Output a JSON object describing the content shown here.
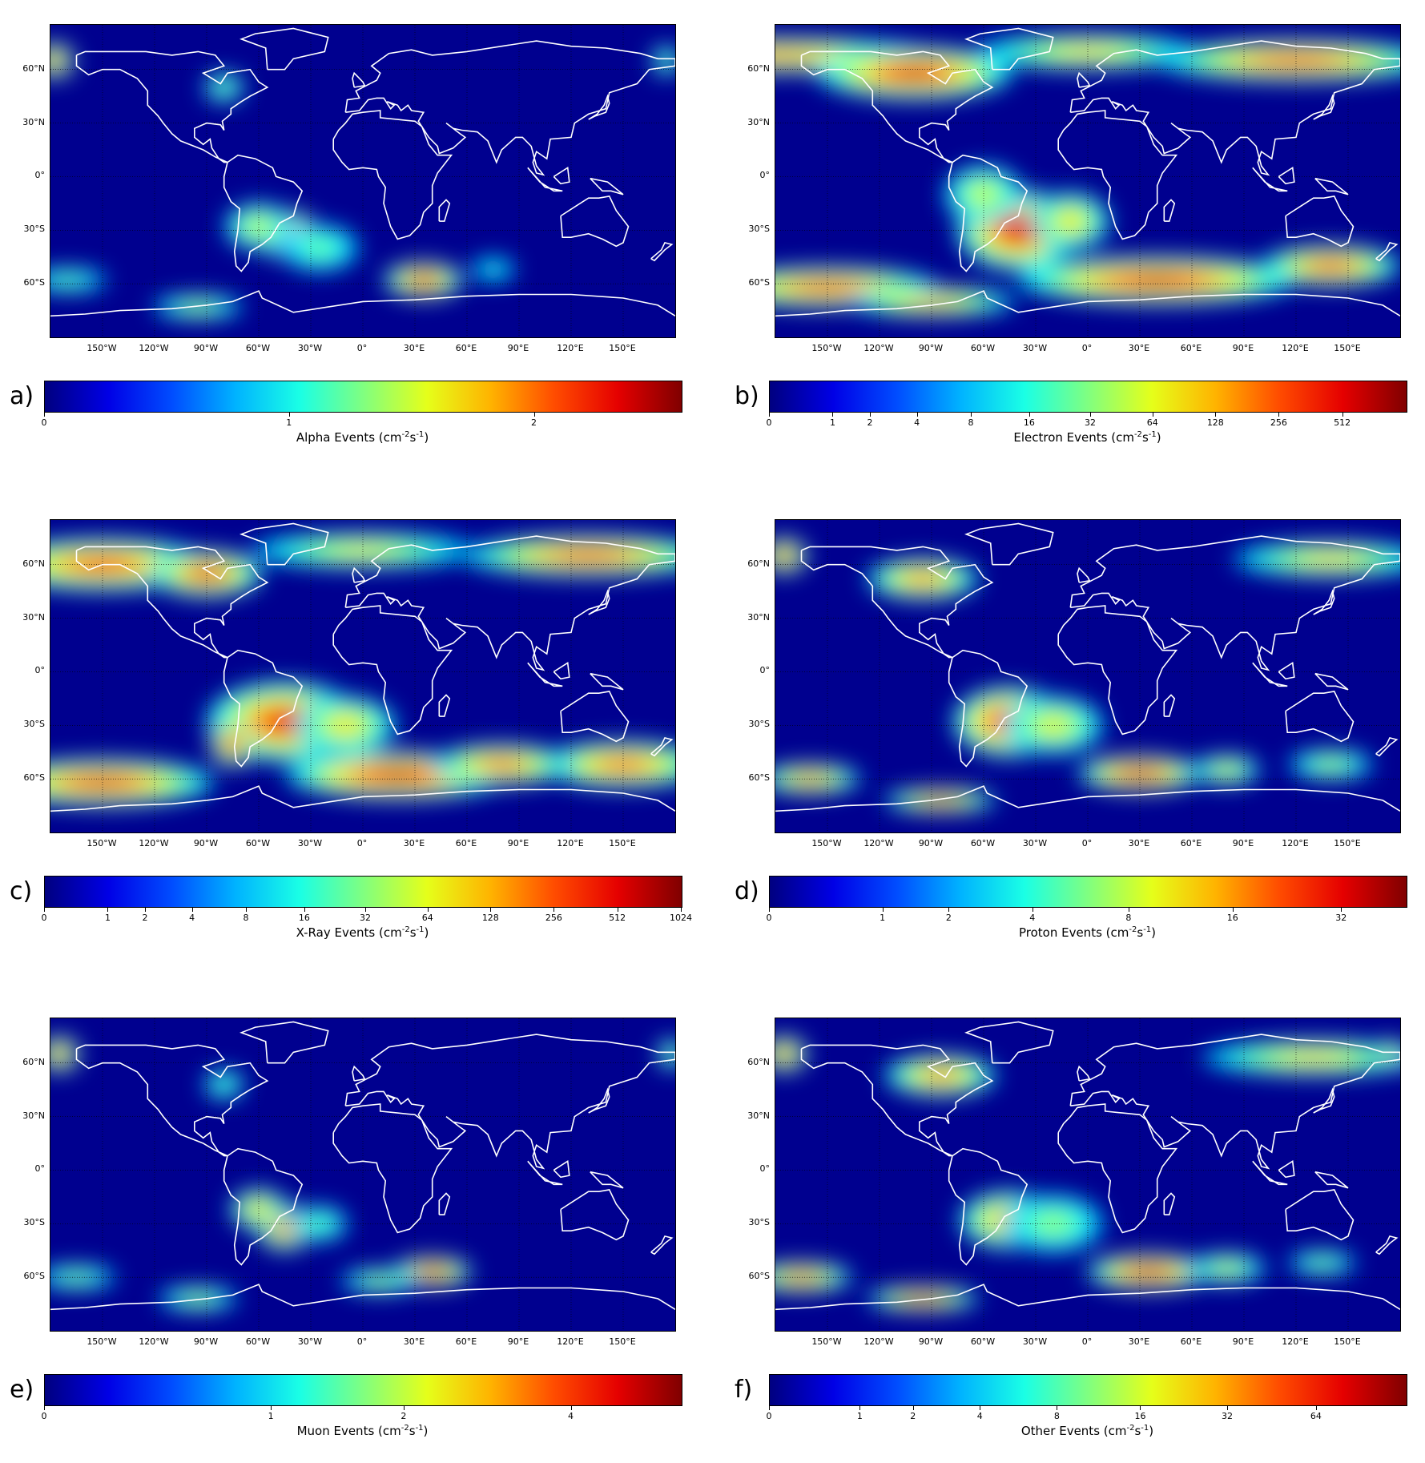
{
  "latitude_labels": [
    "60°N",
    "30°N",
    "0°",
    "30°S",
    "60°S"
  ],
  "longitude_labels": [
    "150°W",
    "120°W",
    "90°W",
    "60°W",
    "30°W",
    "0°",
    "30°E",
    "60°E",
    "90°E",
    "120°E",
    "150°E"
  ],
  "colors": {
    "map_background": "#00008f",
    "coastline": "#ffffff",
    "gridline": "#000000"
  },
  "colormap": "jet",
  "panels": [
    {
      "letter": "a)",
      "title_prefix": "Alpha Events (cm",
      "colorbar_ticks": [
        "0",
        "1",
        "2"
      ],
      "colorbar_scale": "linear",
      "colorbar_range": [
        0,
        2.6
      ],
      "hotspots": [
        {
          "lon": -45,
          "lat": -32,
          "intensity": 1.0,
          "sx": 12,
          "sy": 8
        },
        {
          "lon": -60,
          "lat": -28,
          "intensity": 0.5,
          "sx": 12,
          "sy": 8
        },
        {
          "lon": -25,
          "lat": -40,
          "intensity": 0.35,
          "sx": 14,
          "sy": 8
        },
        {
          "lon": 35,
          "lat": -58,
          "intensity": 0.95,
          "sx": 14,
          "sy": 6
        },
        {
          "lon": -170,
          "lat": -58,
          "intensity": 0.35,
          "sx": 14,
          "sy": 4
        },
        {
          "lon": -95,
          "lat": -73,
          "intensity": 0.45,
          "sx": 16,
          "sy": 4
        },
        {
          "lon": 75,
          "lat": -52,
          "intensity": 0.25,
          "sx": 8,
          "sy": 4
        },
        {
          "lon": -178,
          "lat": 65,
          "intensity": 0.85,
          "sx": 7,
          "sy": 6
        },
        {
          "lon": -80,
          "lat": 50,
          "intensity": 0.4,
          "sx": 7,
          "sy": 5
        },
        {
          "lon": 175,
          "lat": 65,
          "intensity": 0.4,
          "sx": 5,
          "sy": 5
        }
      ]
    },
    {
      "letter": "b)",
      "title_prefix": "Electron Events (cm",
      "colorbar_ticks": [
        "0",
        "1",
        "2",
        "4",
        "8",
        "16",
        "32",
        "64",
        "128",
        "256",
        "512"
      ],
      "colorbar_scale": "log2",
      "colorbar_range": [
        0,
        1024
      ],
      "hotspots": [
        {
          "lon": -40,
          "lat": -30,
          "intensity": 0.95,
          "sx": 22,
          "sy": 14
        },
        {
          "lon": -60,
          "lat": -10,
          "intensity": 0.5,
          "sx": 14,
          "sy": 10
        },
        {
          "lon": -10,
          "lat": -25,
          "intensity": 0.6,
          "sx": 14,
          "sy": 10
        },
        {
          "lon": -180,
          "lat": 68,
          "intensity": 0.75,
          "sx": 60,
          "sy": 6
        },
        {
          "lon": -100,
          "lat": 58,
          "intensity": 0.95,
          "sx": 35,
          "sy": 9
        },
        {
          "lon": 0,
          "lat": 70,
          "intensity": 0.6,
          "sx": 40,
          "sy": 6
        },
        {
          "lon": 120,
          "lat": 65,
          "intensity": 0.85,
          "sx": 50,
          "sy": 7
        },
        {
          "lon": -150,
          "lat": -62,
          "intensity": 0.85,
          "sx": 40,
          "sy": 7
        },
        {
          "lon": 40,
          "lat": -58,
          "intensity": 0.95,
          "sx": 50,
          "sy": 8
        },
        {
          "lon": 140,
          "lat": -50,
          "intensity": 0.85,
          "sx": 25,
          "sy": 7
        },
        {
          "lon": -90,
          "lat": -70,
          "intensity": 0.7,
          "sx": 30,
          "sy": 5
        }
      ]
    },
    {
      "letter": "c)",
      "title_prefix": "X-Ray Events (cm",
      "colorbar_ticks": [
        "0",
        "1",
        "2",
        "4",
        "8",
        "16",
        "32",
        "64",
        "128",
        "256",
        "512",
        "1024"
      ],
      "colorbar_scale": "log2",
      "colorbar_range": [
        0,
        1024
      ],
      "hotspots": [
        {
          "lon": -45,
          "lat": -28,
          "intensity": 0.9,
          "sx": 28,
          "sy": 14
        },
        {
          "lon": -75,
          "lat": -40,
          "intensity": 0.95,
          "sx": 8,
          "sy": 8
        },
        {
          "lon": -10,
          "lat": -30,
          "intensity": 0.6,
          "sx": 18,
          "sy": 10
        },
        {
          "lon": -150,
          "lat": 60,
          "intensity": 0.85,
          "sx": 40,
          "sy": 9
        },
        {
          "lon": -90,
          "lat": 55,
          "intensity": 0.9,
          "sx": 20,
          "sy": 8
        },
        {
          "lon": 0,
          "lat": 68,
          "intensity": 0.55,
          "sx": 40,
          "sy": 6
        },
        {
          "lon": 130,
          "lat": 65,
          "intensity": 0.85,
          "sx": 45,
          "sy": 7
        },
        {
          "lon": -150,
          "lat": -62,
          "intensity": 0.9,
          "sx": 40,
          "sy": 8
        },
        {
          "lon": 20,
          "lat": -58,
          "intensity": 1.0,
          "sx": 40,
          "sy": 8
        },
        {
          "lon": 150,
          "lat": -52,
          "intensity": 0.8,
          "sx": 30,
          "sy": 8
        },
        {
          "lon": 80,
          "lat": -52,
          "intensity": 0.8,
          "sx": 25,
          "sy": 7
        }
      ]
    },
    {
      "letter": "d)",
      "title_prefix": "Proton Events (cm",
      "colorbar_ticks": [
        "0",
        "1",
        "2",
        "4",
        "8",
        "16",
        "32"
      ],
      "colorbar_scale": "log2",
      "colorbar_range": [
        0,
        48
      ],
      "hotspots": [
        {
          "lon": -45,
          "lat": -28,
          "intensity": 1.0,
          "sx": 20,
          "sy": 12
        },
        {
          "lon": -20,
          "lat": -30,
          "intensity": 0.55,
          "sx": 18,
          "sy": 10
        },
        {
          "lon": -175,
          "lat": 65,
          "intensity": 0.9,
          "sx": 8,
          "sy": 6
        },
        {
          "lon": -95,
          "lat": 52,
          "intensity": 0.75,
          "sx": 20,
          "sy": 7
        },
        {
          "lon": 140,
          "lat": 63,
          "intensity": 0.6,
          "sx": 35,
          "sy": 6
        },
        {
          "lon": 30,
          "lat": -57,
          "intensity": 1.0,
          "sx": 22,
          "sy": 6
        },
        {
          "lon": -160,
          "lat": -60,
          "intensity": 0.75,
          "sx": 18,
          "sy": 5
        },
        {
          "lon": -85,
          "lat": -72,
          "intensity": 0.8,
          "sx": 20,
          "sy": 4
        },
        {
          "lon": 80,
          "lat": -55,
          "intensity": 0.55,
          "sx": 12,
          "sy": 5
        },
        {
          "lon": 140,
          "lat": -52,
          "intensity": 0.45,
          "sx": 15,
          "sy": 5
        }
      ]
    },
    {
      "letter": "e)",
      "title_prefix": "Muon Events (cm",
      "colorbar_ticks": [
        "0",
        "1",
        "2",
        "4"
      ],
      "colorbar_scale": "linear-log",
      "colorbar_range": [
        0,
        6
      ],
      "hotspots": [
        {
          "lon": -45,
          "lat": -32,
          "intensity": 0.85,
          "sx": 10,
          "sy": 8
        },
        {
          "lon": -60,
          "lat": -22,
          "intensity": 0.65,
          "sx": 10,
          "sy": 7
        },
        {
          "lon": -25,
          "lat": -30,
          "intensity": 0.35,
          "sx": 10,
          "sy": 6
        },
        {
          "lon": 40,
          "lat": -57,
          "intensity": 0.95,
          "sx": 14,
          "sy": 5
        },
        {
          "lon": 10,
          "lat": -62,
          "intensity": 0.45,
          "sx": 14,
          "sy": 4
        },
        {
          "lon": -165,
          "lat": -60,
          "intensity": 0.4,
          "sx": 14,
          "sy": 4
        },
        {
          "lon": -95,
          "lat": -72,
          "intensity": 0.45,
          "sx": 14,
          "sy": 4
        },
        {
          "lon": -175,
          "lat": 65,
          "intensity": 0.85,
          "sx": 7,
          "sy": 6
        },
        {
          "lon": -80,
          "lat": 48,
          "intensity": 0.35,
          "sx": 7,
          "sy": 5
        },
        {
          "lon": 178,
          "lat": 65,
          "intensity": 0.45,
          "sx": 5,
          "sy": 5
        }
      ]
    },
    {
      "letter": "f)",
      "title_prefix": "Other Events (cm",
      "colorbar_ticks": [
        "0",
        "1",
        "2",
        "4",
        "8",
        "16",
        "32",
        "64"
      ],
      "colorbar_scale": "log2",
      "colorbar_range": [
        0,
        128
      ],
      "hotspots": [
        {
          "lon": -45,
          "lat": -28,
          "intensity": 0.75,
          "sx": 18,
          "sy": 10
        },
        {
          "lon": -20,
          "lat": -30,
          "intensity": 0.4,
          "sx": 18,
          "sy": 10
        },
        {
          "lon": -175,
          "lat": 65,
          "intensity": 0.85,
          "sx": 8,
          "sy": 6
        },
        {
          "lon": -85,
          "lat": 53,
          "intensity": 0.75,
          "sx": 20,
          "sy": 7
        },
        {
          "lon": 130,
          "lat": 63,
          "intensity": 0.6,
          "sx": 40,
          "sy": 6
        },
        {
          "lon": 35,
          "lat": -57,
          "intensity": 1.0,
          "sx": 22,
          "sy": 6
        },
        {
          "lon": -165,
          "lat": -60,
          "intensity": 0.8,
          "sx": 18,
          "sy": 5
        },
        {
          "lon": -95,
          "lat": -72,
          "intensity": 0.85,
          "sx": 20,
          "sy": 4
        },
        {
          "lon": 80,
          "lat": -55,
          "intensity": 0.5,
          "sx": 14,
          "sy": 5
        },
        {
          "lon": 135,
          "lat": -52,
          "intensity": 0.4,
          "sx": 12,
          "sy": 4
        },
        {
          "lon": 175,
          "lat": 65,
          "intensity": 0.6,
          "sx": 5,
          "sy": 5
        }
      ]
    }
  ]
}
